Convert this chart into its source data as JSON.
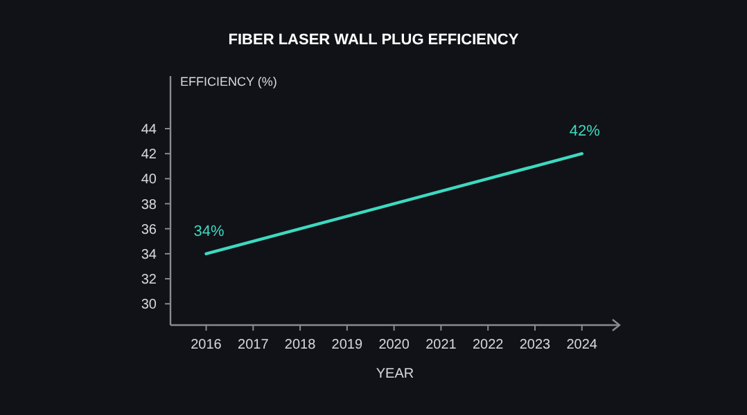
{
  "chart_data": {
    "type": "line",
    "title": "FIBER LASER WALL PLUG EFFICIENCY",
    "xlabel": "YEAR",
    "ylabel": "EFFICIENCY (%)",
    "x": [
      2016,
      2024
    ],
    "series": [
      {
        "color": "#3dd9c1",
        "values": [
          34,
          42
        ],
        "value_labels": [
          "34%",
          "42%"
        ]
      }
    ],
    "xlim": [
      2015.24,
      2024.8
    ],
    "ylim": [
      28.3,
      48.2
    ],
    "xticks": [
      2016,
      2017,
      2018,
      2019,
      2020,
      2021,
      2022,
      2023,
      2024
    ],
    "yticks": [
      30,
      32,
      34,
      36,
      38,
      40,
      42,
      44
    ],
    "marker": "none",
    "line_style": "solid"
  }
}
